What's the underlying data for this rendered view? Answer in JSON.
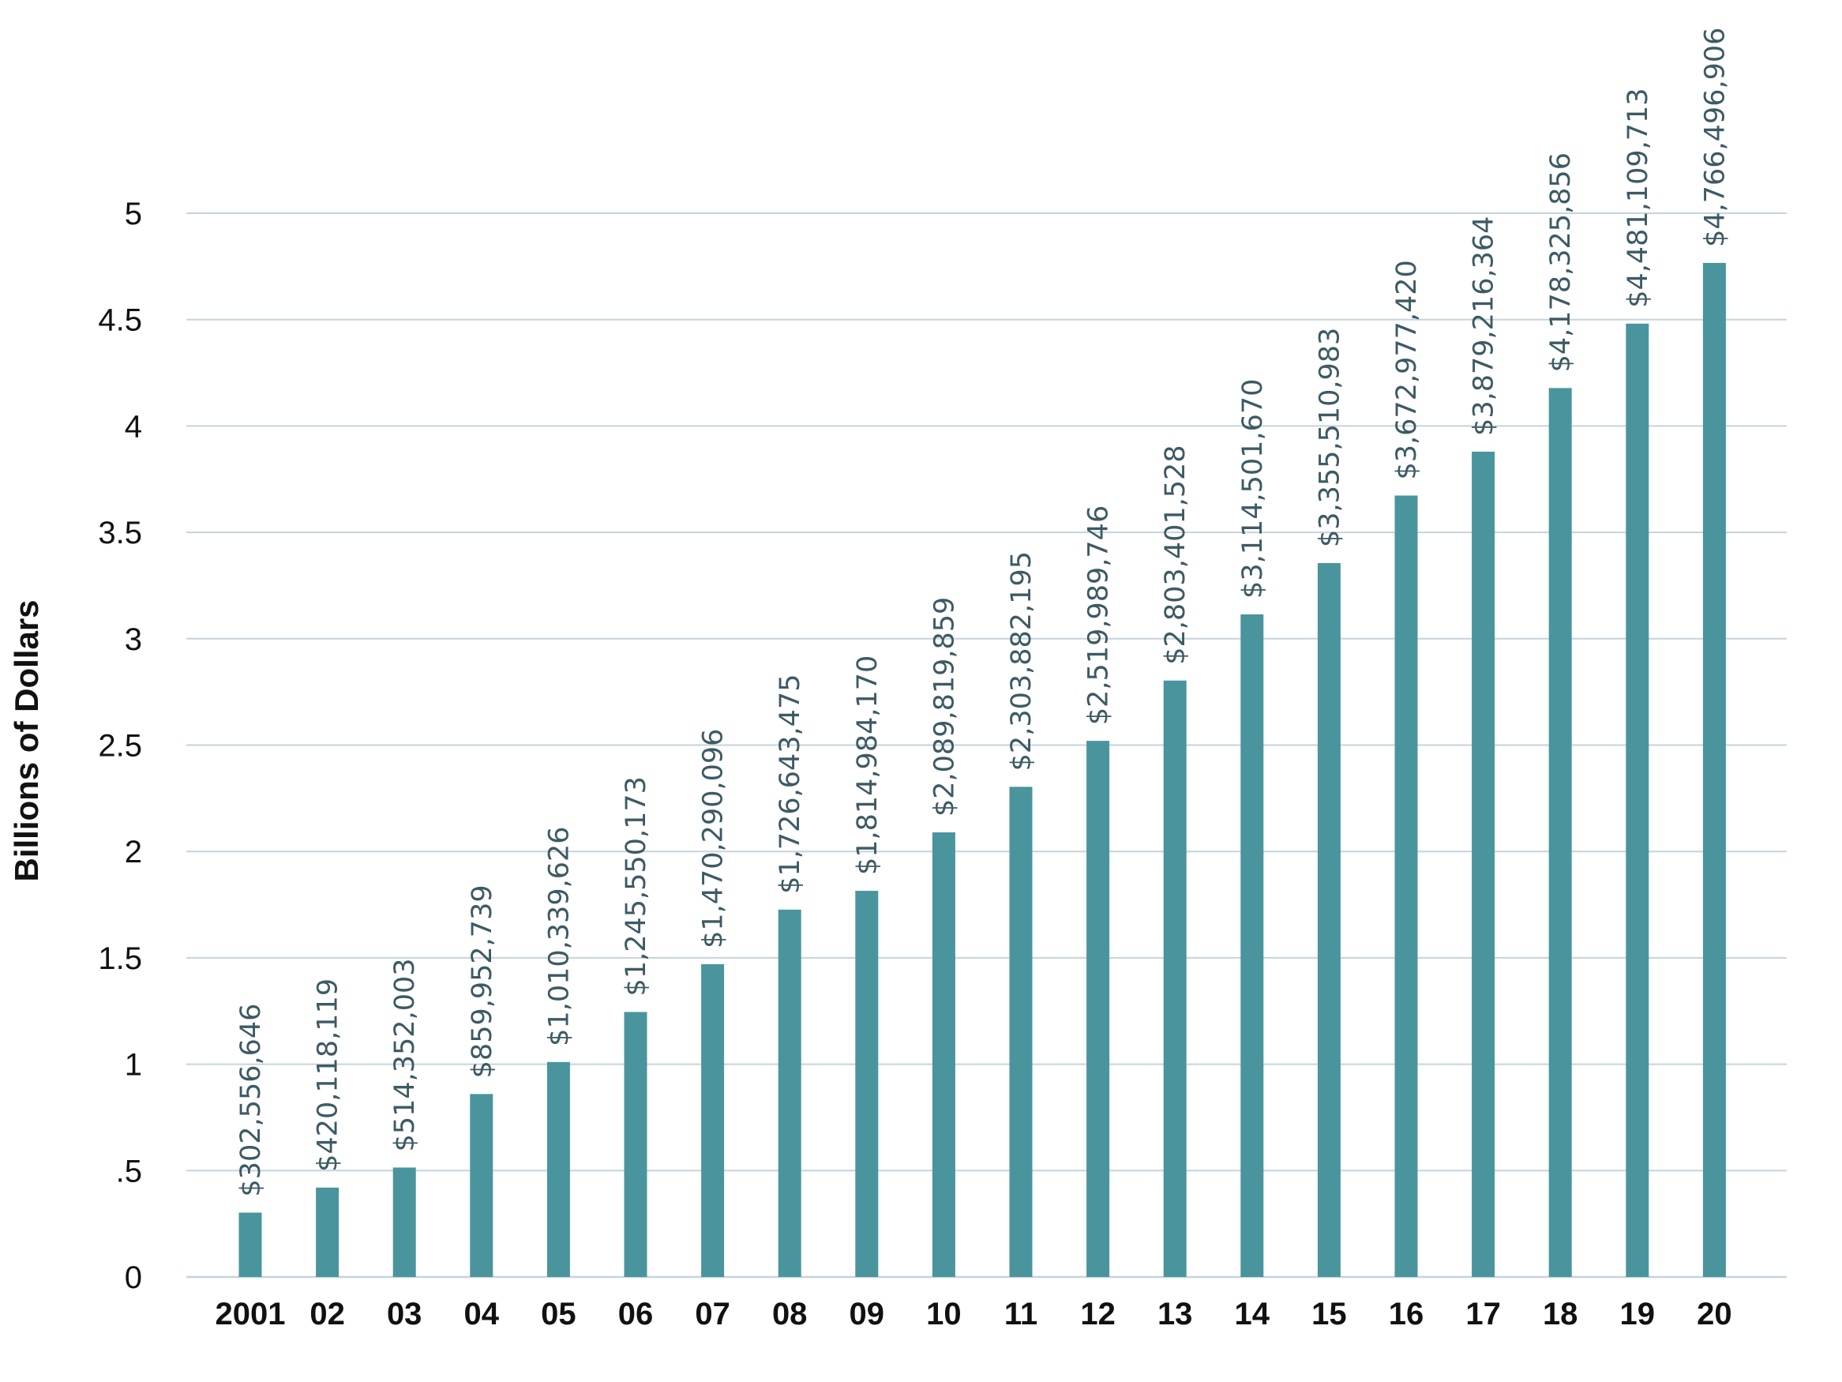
{
  "colors": {
    "bar": "#4a959d",
    "grid": "#c6d3dc",
    "axis_text": "#111111",
    "data_label": "#3d5a64"
  },
  "chart_data": {
    "type": "bar",
    "title": "",
    "xlabel": "",
    "ylabel": "Billions of Dollars",
    "ylim": [
      0,
      5
    ],
    "grid": true,
    "yticks": [
      0,
      0.5,
      1,
      1.5,
      2,
      2.5,
      3,
      3.5,
      4,
      4.5,
      5
    ],
    "ytick_labels": [
      "0",
      ".5",
      "1",
      "1.5",
      "2",
      "2.5",
      "3",
      "3.5",
      "4",
      "4.5",
      "5"
    ],
    "categories": [
      "2001",
      "02",
      "03",
      "04",
      "05",
      "06",
      "07",
      "08",
      "09",
      "10",
      "11",
      "12",
      "13",
      "14",
      "15",
      "16",
      "17",
      "18",
      "19",
      "20"
    ],
    "values": [
      0.302556646,
      0.420118119,
      0.514352003,
      0.859952739,
      1.010339626,
      1.245550173,
      1.470290096,
      1.726643475,
      1.81498417,
      2.089819859,
      2.303882195,
      2.519989746,
      2.803401528,
      3.11450167,
      3.355510983,
      3.67297742,
      3.879216364,
      4.178325856,
      4.481109713,
      4.766496906
    ],
    "data_labels": [
      "$302,556,646",
      "$420,118,119",
      "$514,352,003",
      "$859,952,739",
      "$1,010,339,626",
      "$1,245,550,173",
      "$1,470,290,096",
      "$1,726,643,475",
      "$1,814,984,170",
      "$2,089,819,859",
      "$2,303,882,195",
      "$2,519,989,746",
      "$2,803,401,528",
      "$3,114,501,670",
      "$3,355,510,983",
      "$3,672,977,420",
      "$3,879,216,364",
      "$4,178,325,856",
      "$4,481,109,713",
      "$4,766,496,906"
    ]
  }
}
